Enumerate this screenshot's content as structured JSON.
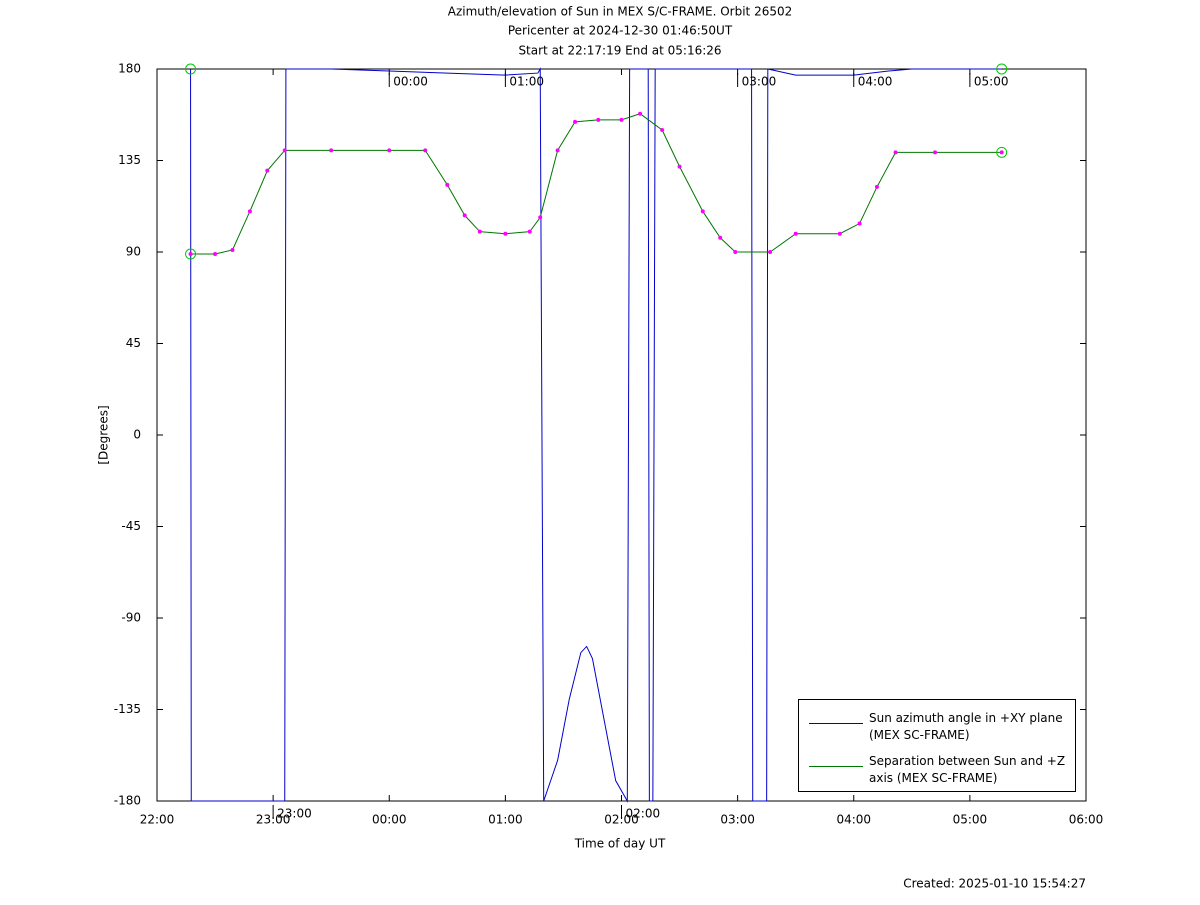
{
  "chart_data": {
    "type": "line",
    "title": "Azimuth/elevation of Sun in MEX S/C-FRAME.  Orbit 26502",
    "subtitle": "Pericenter at 2024-12-30 01:46:50UT",
    "subtitle2": "Start at 22:17:19 End at 05:16:26",
    "xlabel": "Time of day UT",
    "ylabel": "[Degrees]",
    "footer": "Created: 2025-01-10 15:54:27",
    "xlim": [
      22,
      30
    ],
    "xticks": [
      {
        "value": 22,
        "label": "22:00"
      },
      {
        "value": 23,
        "label": "23:00"
      },
      {
        "value": 24,
        "label": "00:00"
      },
      {
        "value": 25,
        "label": "01:00"
      },
      {
        "value": 26,
        "label": "02:00"
      },
      {
        "value": 27,
        "label": "03:00"
      },
      {
        "value": 28,
        "label": "04:00"
      },
      {
        "value": 29,
        "label": "05:00"
      },
      {
        "value": 30,
        "label": "06:00"
      }
    ],
    "ylim": [
      -180,
      180
    ],
    "yticks": [
      -180,
      -135,
      -90,
      -45,
      0,
      45,
      90,
      135,
      180
    ],
    "series": [
      {
        "name": "Sun azimuth angle in +XY plane (MEX SC-FRAME)",
        "color": "#0000cc",
        "x": [
          22.289,
          22.295,
          23.1,
          23.11,
          23.5,
          24.0,
          24.5,
          25.0,
          25.28,
          25.3,
          25.33,
          25.45,
          25.55,
          25.65,
          25.7,
          25.75,
          25.85,
          25.95,
          26.05,
          26.07,
          26.23,
          26.24,
          26.27,
          26.29,
          27.12,
          27.13,
          27.25,
          27.26,
          27.5,
          28.0,
          28.3,
          28.5,
          29.274
        ],
        "values": [
          180,
          -180,
          -180,
          180,
          180,
          179,
          178,
          177,
          178,
          180,
          -180,
          -160,
          -130,
          -107,
          -104,
          -110,
          -140,
          -170,
          -180,
          180,
          180,
          -180,
          -180,
          180,
          180,
          -180,
          -180,
          180,
          177,
          177,
          179,
          180,
          180
        ]
      },
      {
        "name": "Separation between Sun and +Z axis (MEX SC-FRAME)",
        "color": "#007700",
        "x": [
          22.289,
          22.5,
          22.65,
          22.8,
          22.95,
          23.1,
          23.5,
          24.0,
          24.31,
          24.5,
          24.65,
          24.78,
          25.0,
          25.21,
          25.3,
          25.45,
          25.6,
          25.8,
          26.0,
          26.16,
          26.35,
          26.5,
          26.7,
          26.85,
          26.98,
          27.28,
          27.5,
          27.88,
          28.05,
          28.2,
          28.36,
          28.7,
          29.274
        ],
        "values": [
          89,
          89,
          91,
          110,
          130,
          140,
          140,
          140,
          140,
          123,
          108,
          100,
          99,
          100,
          107,
          140,
          154,
          155,
          155,
          158,
          150,
          132,
          110,
          97,
          90,
          90,
          99,
          99,
          104,
          122,
          139,
          139,
          139
        ]
      }
    ],
    "annotations": [
      {
        "text": "23:00",
        "x": 23.0,
        "y": -180
      },
      {
        "text": "00:00",
        "x": 24.0,
        "y": 180
      },
      {
        "text": "01:00",
        "x": 25.0,
        "y": 180
      },
      {
        "text": "02:00",
        "x": 26.0,
        "y": -180
      },
      {
        "text": "03:00",
        "x": 27.0,
        "y": 180
      },
      {
        "text": "04:00",
        "x": 28.0,
        "y": 180
      },
      {
        "text": "05:00",
        "x": 29.0,
        "y": 180
      }
    ]
  }
}
